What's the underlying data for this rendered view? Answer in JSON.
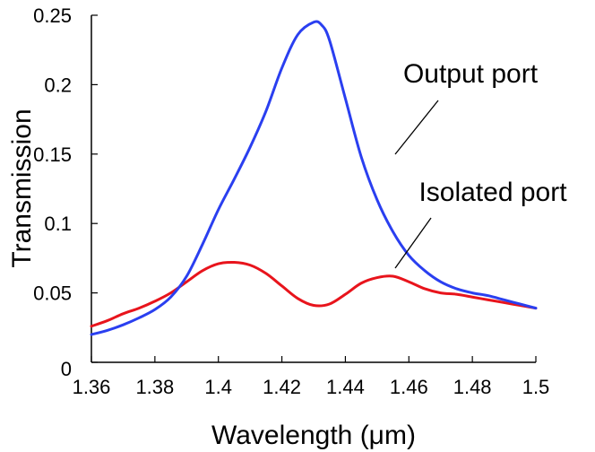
{
  "chart_data": {
    "type": "line",
    "title": "",
    "xlabel": "Wavelength (μm)",
    "ylabel": "Transmission",
    "xlim": [
      1.36,
      1.5
    ],
    "ylim": [
      0,
      0.25
    ],
    "x_ticks": [
      1.36,
      1.38,
      1.4,
      1.42,
      1.44,
      1.46,
      1.48,
      1.5
    ],
    "x_tick_labels": [
      "1.36",
      "1.38",
      "1.4",
      "1.42",
      "1.44",
      "1.46",
      "1.48",
      "1.5"
    ],
    "y_ticks": [
      0,
      0.05,
      0.1,
      0.15,
      0.2,
      0.25
    ],
    "y_tick_labels": [
      "0",
      "0.05",
      "0.1",
      "0.15",
      "0.2",
      "0.25"
    ],
    "grid": false,
    "series": [
      {
        "name": "Output port",
        "color": "#2a3ff0",
        "x": [
          1.36,
          1.365,
          1.37,
          1.375,
          1.38,
          1.385,
          1.39,
          1.395,
          1.4,
          1.405,
          1.41,
          1.415,
          1.42,
          1.425,
          1.43,
          1.4325,
          1.435,
          1.44,
          1.445,
          1.45,
          1.455,
          1.46,
          1.465,
          1.47,
          1.475,
          1.48,
          1.485,
          1.49,
          1.495,
          1.5
        ],
        "y": [
          0.02,
          0.023,
          0.027,
          0.032,
          0.038,
          0.047,
          0.062,
          0.085,
          0.11,
          0.132,
          0.155,
          0.181,
          0.212,
          0.236,
          0.245,
          0.243,
          0.232,
          0.19,
          0.148,
          0.117,
          0.094,
          0.077,
          0.066,
          0.058,
          0.053,
          0.05,
          0.048,
          0.045,
          0.042,
          0.039
        ]
      },
      {
        "name": "Isolated port",
        "color": "#e8141c",
        "x": [
          1.36,
          1.365,
          1.37,
          1.375,
          1.38,
          1.385,
          1.39,
          1.395,
          1.4,
          1.405,
          1.41,
          1.415,
          1.42,
          1.425,
          1.43,
          1.435,
          1.44,
          1.445,
          1.45,
          1.455,
          1.46,
          1.465,
          1.47,
          1.475,
          1.48,
          1.485,
          1.49,
          1.495,
          1.5
        ],
        "y": [
          0.026,
          0.03,
          0.035,
          0.039,
          0.044,
          0.05,
          0.058,
          0.066,
          0.071,
          0.072,
          0.07,
          0.064,
          0.055,
          0.046,
          0.041,
          0.042,
          0.049,
          0.057,
          0.061,
          0.062,
          0.058,
          0.053,
          0.05,
          0.049,
          0.047,
          0.045,
          0.043,
          0.041,
          0.039
        ]
      }
    ],
    "annotations": [
      {
        "text": "Output port",
        "series": "Output port"
      },
      {
        "text": "Isolated port",
        "series": "Isolated port"
      }
    ]
  }
}
